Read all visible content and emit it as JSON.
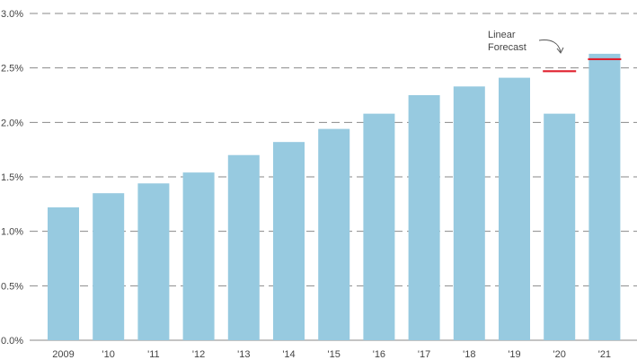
{
  "chart_data": {
    "type": "bar",
    "categories": [
      "2009",
      "'10",
      "'11",
      "'12",
      "'13",
      "'14",
      "'15",
      "'16",
      "'17",
      "'18",
      "'19",
      "'20",
      "'21"
    ],
    "values": [
      1.22,
      1.35,
      1.44,
      1.54,
      1.7,
      1.82,
      1.94,
      2.08,
      2.25,
      2.33,
      2.41,
      2.08,
      2.63
    ],
    "forecast": {
      "categories": [
        "'20",
        "'21"
      ],
      "values": [
        2.47,
        2.58
      ]
    },
    "y_ticks": [
      "0.0%",
      "0.5%",
      "1.0%",
      "1.5%",
      "2.0%",
      "2.5%",
      "3.0%"
    ],
    "ylim": [
      0,
      3.0
    ],
    "grid": true,
    "annotation": {
      "line1": "Linear",
      "line2": "Forecast"
    },
    "colors": {
      "bar": "#97cae0",
      "forecast": "#e0202e",
      "grid": "#8a8a8a",
      "text": "#444444"
    }
  }
}
